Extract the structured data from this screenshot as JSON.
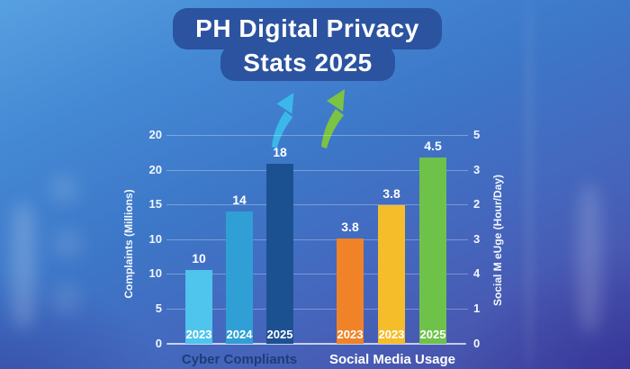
{
  "title": {
    "line1": "PH Digital Privacy",
    "line2": "Stats 2025"
  },
  "chart_data": {
    "type": "bar",
    "title": "PH Digital Privacy Stats 2025",
    "groups": [
      {
        "label": "Cyber Compliants",
        "label_color": "#1c3d78",
        "bars": [
          {
            "year": "2023",
            "value": 10,
            "color": "#4fc4ec"
          },
          {
            "year": "2024",
            "value": 14,
            "color": "#2f9fd6"
          },
          {
            "year": "2025",
            "value": 18,
            "color": "#1c5191"
          }
        ]
      },
      {
        "label": "Social Media Usage",
        "label_color": "#ffffff",
        "bars": [
          {
            "year": "2023",
            "value": 3.8,
            "color": "#f08227"
          },
          {
            "year": "2023",
            "value": 3.8,
            "color": "#f6bd2b"
          },
          {
            "year": "2025",
            "value": 4.5,
            "color": "#6ec24a"
          }
        ]
      }
    ],
    "left_axis": {
      "label": "Complaints (Millions)",
      "ticks": [
        "20",
        "20",
        "15",
        "10",
        "10",
        "5",
        "0"
      ]
    },
    "right_axis": {
      "label": "Social M eUge (Hour/Day)",
      "ticks": [
        "5",
        "3",
        "2",
        "3",
        "4",
        "1",
        "0"
      ]
    },
    "grid": true,
    "legend_position": "none"
  },
  "decorations": {
    "cyan_arrow_color": "#3cb7ea",
    "green_arrow_color": "#7cc243"
  }
}
